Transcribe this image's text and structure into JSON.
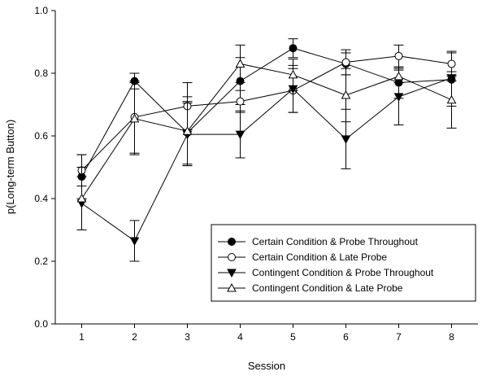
{
  "chart_data": {
    "type": "line",
    "xlabel": "Session",
    "ylabel": "p(Long-term Button)",
    "x": [
      1,
      2,
      3,
      4,
      5,
      6,
      7,
      8
    ],
    "xlim": [
      0.5,
      8.5
    ],
    "ylim": [
      0,
      1
    ],
    "x_ticks": [
      "1",
      "2",
      "3",
      "4",
      "5",
      "6",
      "7",
      "8"
    ],
    "y_ticks": [
      "0.0",
      "0.2",
      "0.4",
      "0.6",
      "0.8",
      "1.0"
    ],
    "y_tick_values": [
      0,
      0.2,
      0.4,
      0.6,
      0.8,
      1.0
    ],
    "grid": false,
    "legend_position": "bottom-right",
    "series": [
      {
        "name": "Certain Condition & Probe Throughout",
        "marker": "filled-circle",
        "values": [
          0.47,
          0.775,
          0.61,
          0.775,
          0.88,
          0.83,
          0.77,
          0.78
        ],
        "errors": [
          0.07,
          0.025,
          0.1,
          0.075,
          0.03,
          0.035,
          0.05,
          0.085
        ]
      },
      {
        "name": "Certain Condition & Late Probe",
        "marker": "open-circle",
        "values": [
          0.49,
          0.66,
          0.695,
          0.71,
          0.745,
          0.835,
          0.855,
          0.83
        ],
        "errors": [
          0.05,
          0.115,
          0.075,
          0.035,
          0.07,
          0.04,
          0.035,
          0.04
        ]
      },
      {
        "name": "Contingent Condition & Probe Throughout",
        "marker": "filled-triangle-down",
        "values": [
          0.385,
          0.265,
          0.605,
          0.605,
          0.75,
          0.59,
          0.725,
          0.785
        ],
        "errors": [
          0.085,
          0.065,
          0.1,
          0.075,
          0.075,
          0.095,
          0.09,
          0.01
        ]
      },
      {
        "name": "Contingent Condition & Late Probe",
        "marker": "open-triangle-up",
        "values": [
          0.4,
          0.655,
          0.615,
          0.83,
          0.795,
          0.73,
          0.79,
          0.715
        ],
        "errors": [
          0.1,
          0.115,
          0.11,
          0.06,
          0.05,
          0.085,
          0.02,
          0.09
        ]
      }
    ]
  }
}
